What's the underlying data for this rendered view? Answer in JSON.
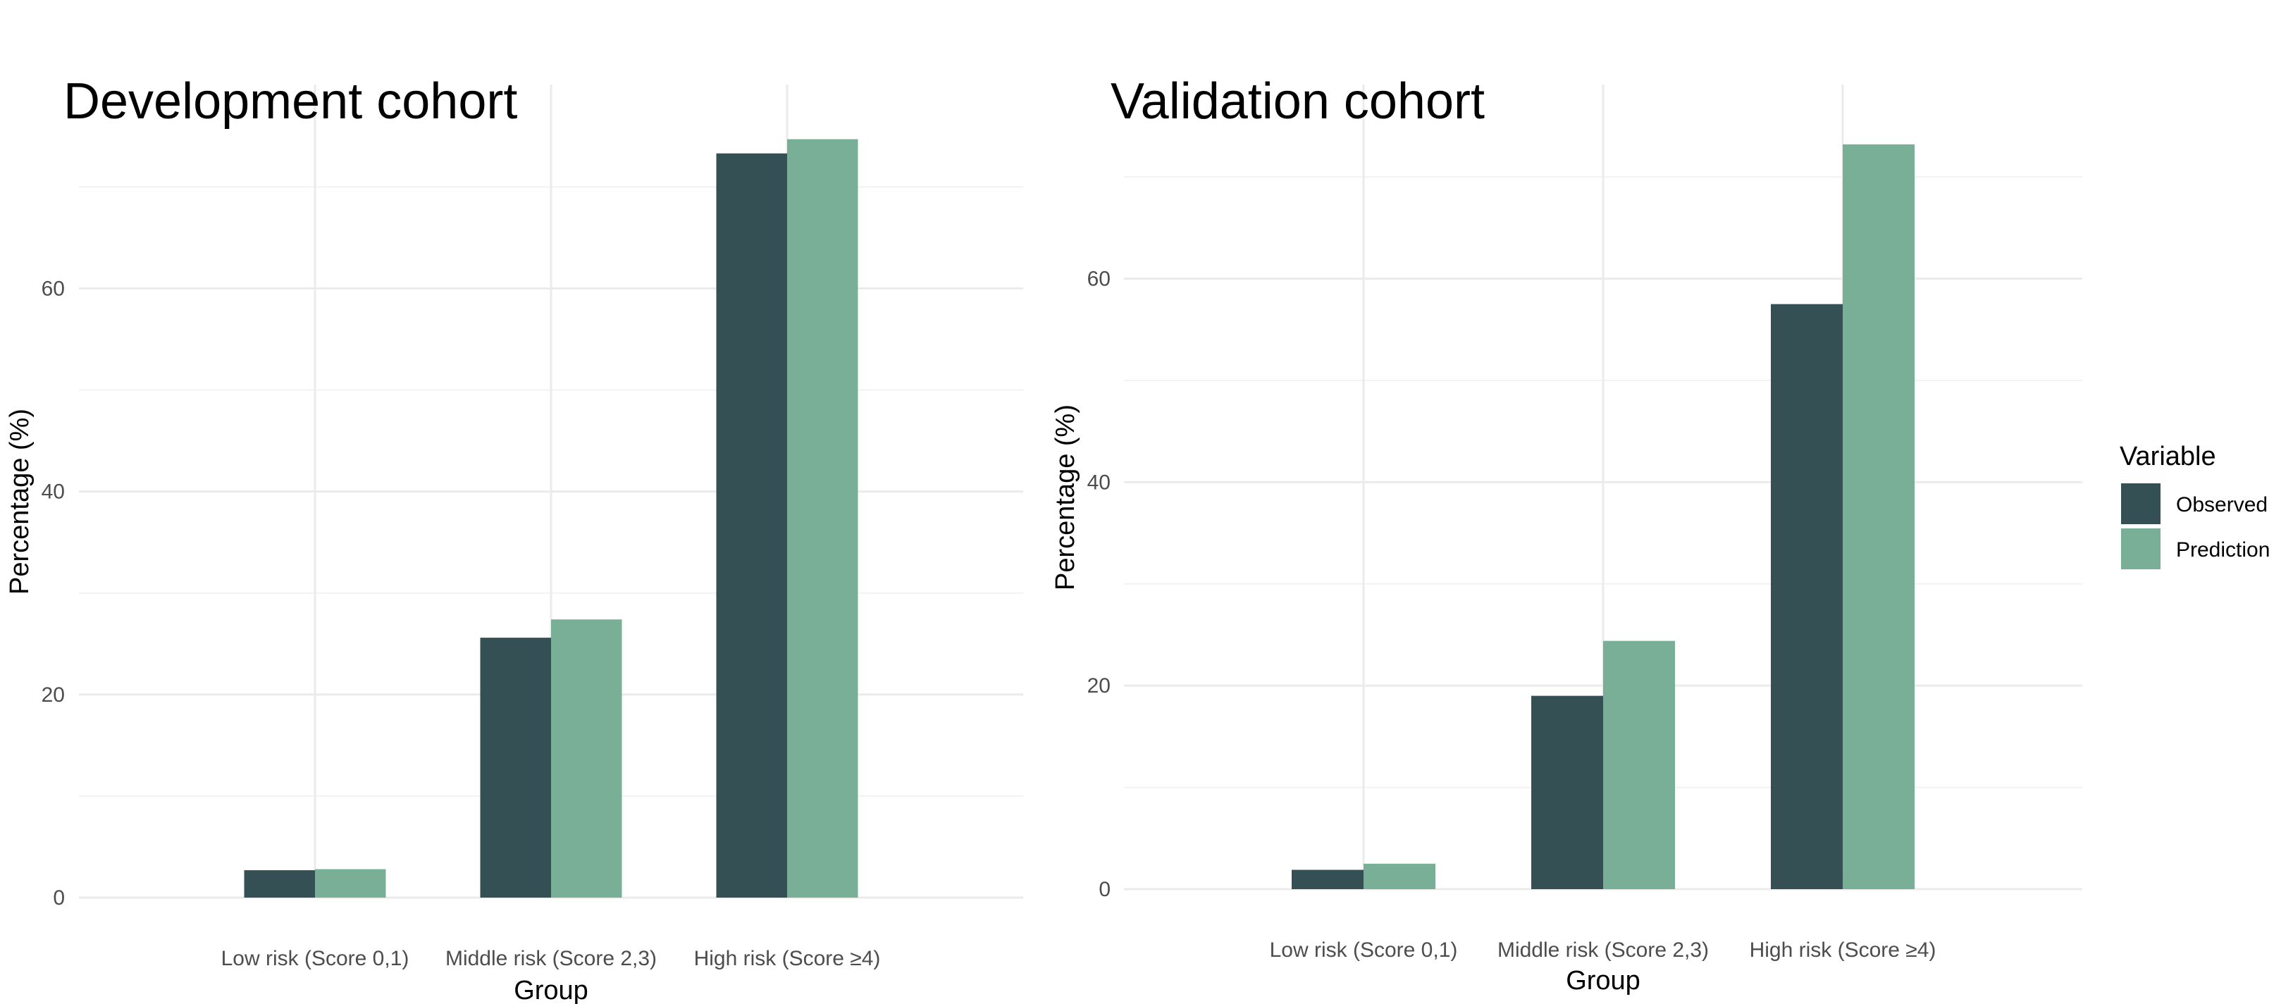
{
  "colors": {
    "observed": "#355054",
    "prediction": "#7aaf97"
  },
  "legend": {
    "title": "Variable",
    "items": [
      {
        "label": "Observed",
        "color": "#355054"
      },
      {
        "label": "Prediction",
        "color": "#7aaf97"
      }
    ],
    "placement": "right"
  },
  "chart_data": [
    {
      "type": "bar",
      "title": "Development cohort",
      "xlabel": "Group",
      "ylabel": "Percentage (%)",
      "categories": [
        "Low risk (Score 0,1)",
        "Middle risk (Score 2,3)",
        "High risk (Score ≥4)"
      ],
      "series": [
        {
          "name": "Observed",
          "values": [
            2.7,
            25.6,
            73.3
          ]
        },
        {
          "name": "Prediction",
          "values": [
            2.8,
            27.4,
            74.7
          ]
        }
      ],
      "yticks": [
        0,
        20,
        40,
        60
      ],
      "ylim": [
        0,
        78
      ],
      "grid": true
    },
    {
      "type": "bar",
      "title": "Validation cohort",
      "xlabel": "Group",
      "ylabel": "Percentage (%)",
      "categories": [
        "Low risk (Score 0,1)",
        "Middle risk (Score 2,3)",
        "High risk (Score ≥4)"
      ],
      "series": [
        {
          "name": "Observed",
          "values": [
            1.9,
            19.0,
            57.5
          ]
        },
        {
          "name": "Prediction",
          "values": [
            2.5,
            24.4,
            73.2
          ]
        }
      ],
      "yticks": [
        0,
        20,
        40,
        60
      ],
      "ylim": [
        0,
        77
      ],
      "grid": true
    }
  ]
}
